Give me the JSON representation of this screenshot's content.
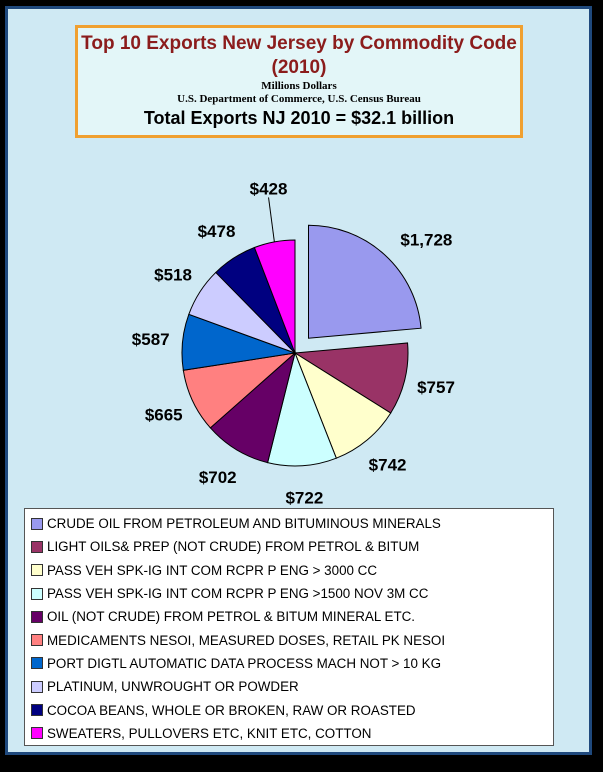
{
  "chart_data": {
    "type": "pie",
    "title": "Top 10 Exports New Jersey by Commodity Code (2010)",
    "subtitle": [
      "Millions Dollars",
      "U.S. Department of Commerce, U.S. Census Bureau"
    ],
    "annotation": "Total Exports NJ 2010 = $32.1 billion",
    "legend_position": "bottom",
    "slices": [
      {
        "label": "CRUDE OIL FROM PETROLEUM AND BITUMINOUS MINERALS",
        "value": 1728,
        "value_label": "$1,728",
        "color": "#9999ee",
        "exploded": true
      },
      {
        "label": "LIGHT OILS& PREP (NOT CRUDE) FROM PETROL & BITUM",
        "value": 757,
        "value_label": "$757",
        "color": "#993366"
      },
      {
        "label": "PASS VEH SPK-IG INT COM RCPR P ENG > 3000 CC",
        "value": 742,
        "value_label": "$742",
        "color": "#ffffcc"
      },
      {
        "label": "PASS VEH SPK-IG INT COM RCPR P ENG >1500 NOV 3M CC",
        "value": 722,
        "value_label": "$722",
        "color": "#ccffff"
      },
      {
        "label": "OIL (NOT CRUDE) FROM PETROL & BITUM MINERAL ETC.",
        "value": 702,
        "value_label": "$702",
        "color": "#660066"
      },
      {
        "label": "MEDICAMENTS NESOI, MEASURED DOSES, RETAIL PK NESOI",
        "value": 665,
        "value_label": "$665",
        "color": "#ff8080"
      },
      {
        "label": "PORT DIGTL AUTOMATIC DATA PROCESS MACH NOT > 10 KG",
        "value": 587,
        "value_label": "$587",
        "color": "#0066cc"
      },
      {
        "label": "PLATINUM, UNWROUGHT OR POWDER",
        "value": 518,
        "value_label": "$518",
        "color": "#ccccff"
      },
      {
        "label": "COCOA BEANS, WHOLE OR BROKEN, RAW OR ROASTED",
        "value": 478,
        "value_label": "$478",
        "color": "#000080"
      },
      {
        "label": "SWEATERS, PULLOVERS ETC, KNIT ETC, COTTON",
        "value": 428,
        "value_label": "$428",
        "color": "#ff00ff"
      }
    ]
  }
}
